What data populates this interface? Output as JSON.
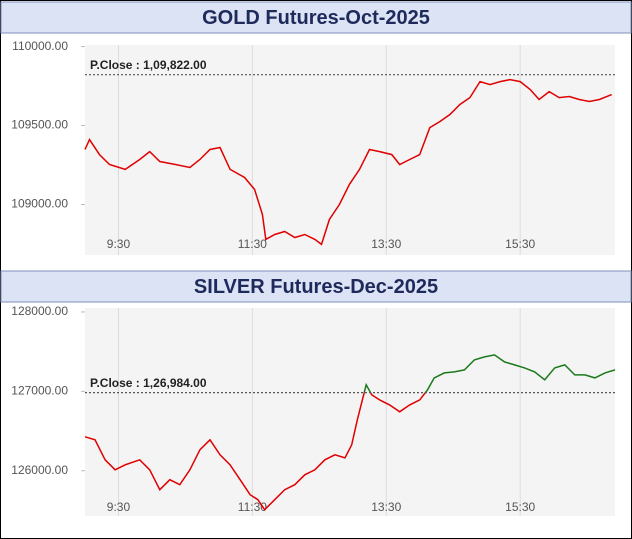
{
  "chart_data": [
    {
      "type": "line",
      "title": "GOLD Futures-Oct-2025",
      "x": [
        "9:00",
        "9:04",
        "9:13",
        "9:22",
        "9:36",
        "9:49",
        "9:58",
        "10:07",
        "10:21",
        "10:34",
        "10:43",
        "10:52",
        "11:01",
        "11:10",
        "11:23",
        "11:32",
        "11:39",
        "11:42",
        "11:50",
        "11:59",
        "12:08",
        "12:17",
        "12:26",
        "12:32",
        "12:39",
        "12:48",
        "12:57",
        "13:06",
        "13:15",
        "13:24",
        "13:35",
        "13:42",
        "13:51",
        "14:00",
        "14:09",
        "14:18",
        "14:27",
        "14:36",
        "14:45",
        "14:54",
        "15:03",
        "15:12",
        "15:21",
        "15:30",
        "15:39",
        "15:47",
        "15:56",
        "16:05",
        "16:14",
        "16:23",
        "16:32",
        "16:41",
        "16:52"
      ],
      "values": [
        109348,
        109411,
        109316,
        109253,
        109222,
        109285,
        109335,
        109272,
        109253,
        109234,
        109285,
        109348,
        109361,
        109222,
        109171,
        109095,
        108937,
        108779,
        108810,
        108829,
        108791,
        108810,
        108779,
        108747,
        108905,
        109000,
        109127,
        109222,
        109348,
        109335,
        109316,
        109253,
        109285,
        109316,
        109487,
        109525,
        109570,
        109633,
        109677,
        109778,
        109759,
        109778,
        109791,
        109778,
        109728,
        109665,
        109715,
        109677,
        109684,
        109665,
        109652,
        109665,
        109696
      ],
      "color": "#e00000",
      "color_above": "#1a7a1a",
      "reference": {
        "label": "P.Close : 1,09,822.00",
        "value": 109822
      },
      "xlim": [
        "9:00",
        "16:55"
      ],
      "xticks": [
        "9:30",
        "11:30",
        "13:30",
        "15:30"
      ],
      "ylim": [
        108680,
        110010
      ],
      "yticks": [
        {
          "value": 109000,
          "label": "109000.00"
        },
        {
          "value": 109500,
          "label": "109500.00"
        },
        {
          "value": 110000,
          "label": "110000.00"
        }
      ],
      "grid": true
    },
    {
      "type": "line",
      "title": "SILVER Futures-Dec-2025",
      "x": [
        "9:00",
        "9:09",
        "9:18",
        "9:27",
        "9:36",
        "9:49",
        "9:58",
        "10:07",
        "10:16",
        "10:25",
        "10:34",
        "10:43",
        "10:52",
        "11:01",
        "11:10",
        "11:19",
        "11:28",
        "11:35",
        "11:41",
        "11:50",
        "11:59",
        "12:08",
        "12:17",
        "12:26",
        "12:35",
        "12:44",
        "12:53",
        "12:59",
        "13:04",
        "13:12",
        "13:17",
        "13:24",
        "13:33",
        "13:42",
        "13:51",
        "14:00",
        "14:07",
        "14:13",
        "14:22",
        "14:31",
        "14:40",
        "14:49",
        "14:58",
        "15:07",
        "15:16",
        "15:25",
        "15:34",
        "15:43",
        "15:52",
        "16:01",
        "16:10",
        "16:19",
        "16:28",
        "16:37",
        "16:46",
        "16:55"
      ],
      "values": [
        126427,
        126390,
        126138,
        126012,
        126075,
        126138,
        126012,
        125761,
        125887,
        125824,
        126012,
        126264,
        126390,
        126201,
        126075,
        125887,
        125698,
        125635,
        125509,
        125635,
        125761,
        125824,
        125949,
        126012,
        126138,
        126201,
        126163,
        126327,
        126641,
        127082,
        126956,
        126893,
        126830,
        126742,
        126830,
        126893,
        127019,
        127170,
        127233,
        127245,
        127270,
        127396,
        127434,
        127459,
        127371,
        127333,
        127296,
        127245,
        127145,
        127296,
        127333,
        127207,
        127207,
        127170,
        127233,
        127270
      ],
      "color": "#e00000",
      "color_above": "#1a7a1a",
      "reference": {
        "label": "P.Close : 1,26,984.00",
        "value": 126984
      },
      "xlim": [
        "9:00",
        "16:55"
      ],
      "xticks": [
        "9:30",
        "11:30",
        "13:30",
        "15:30"
      ],
      "ylim": [
        125430,
        128050
      ],
      "yticks": [
        {
          "value": 126000,
          "label": "126000.00"
        },
        {
          "value": 127000,
          "label": "127000.00"
        },
        {
          "value": 128000,
          "label": "128000.00"
        }
      ],
      "grid": true
    }
  ]
}
